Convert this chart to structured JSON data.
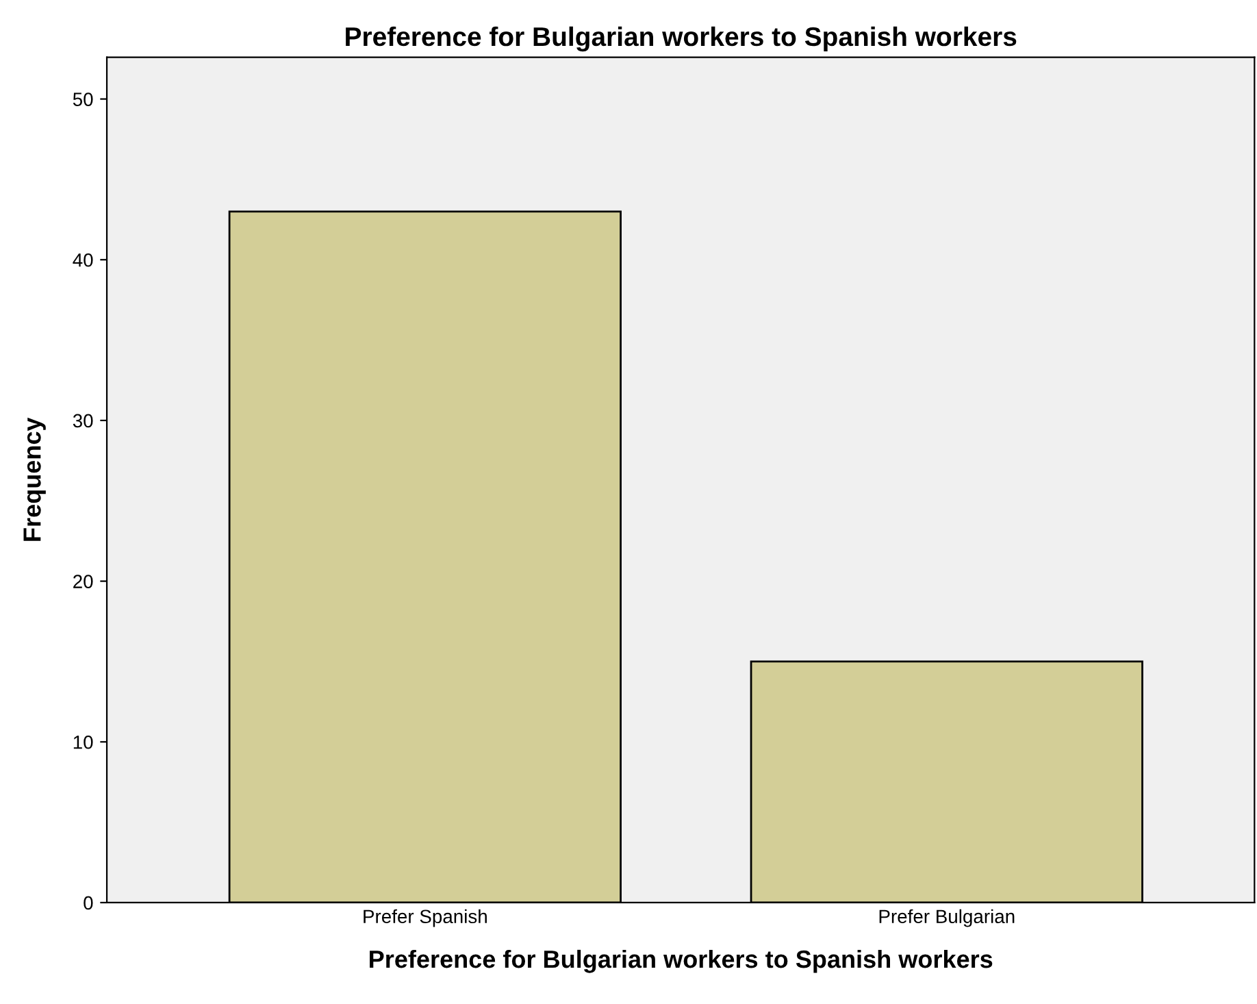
{
  "chart_data": {
    "type": "bar",
    "title": "Preference for Bulgarian workers to Spanish workers",
    "xlabel": "Preference for Bulgarian workers to Spanish workers",
    "ylabel": "Frequency",
    "categories": [
      "Prefer Spanish",
      "Prefer Bulgarian"
    ],
    "values": [
      43,
      15
    ],
    "color": "#d3ce97",
    "ylim": [
      0,
      52.6
    ],
    "yticks": [
      0,
      10,
      20,
      30,
      40,
      50
    ],
    "grid": false,
    "legend": false
  }
}
